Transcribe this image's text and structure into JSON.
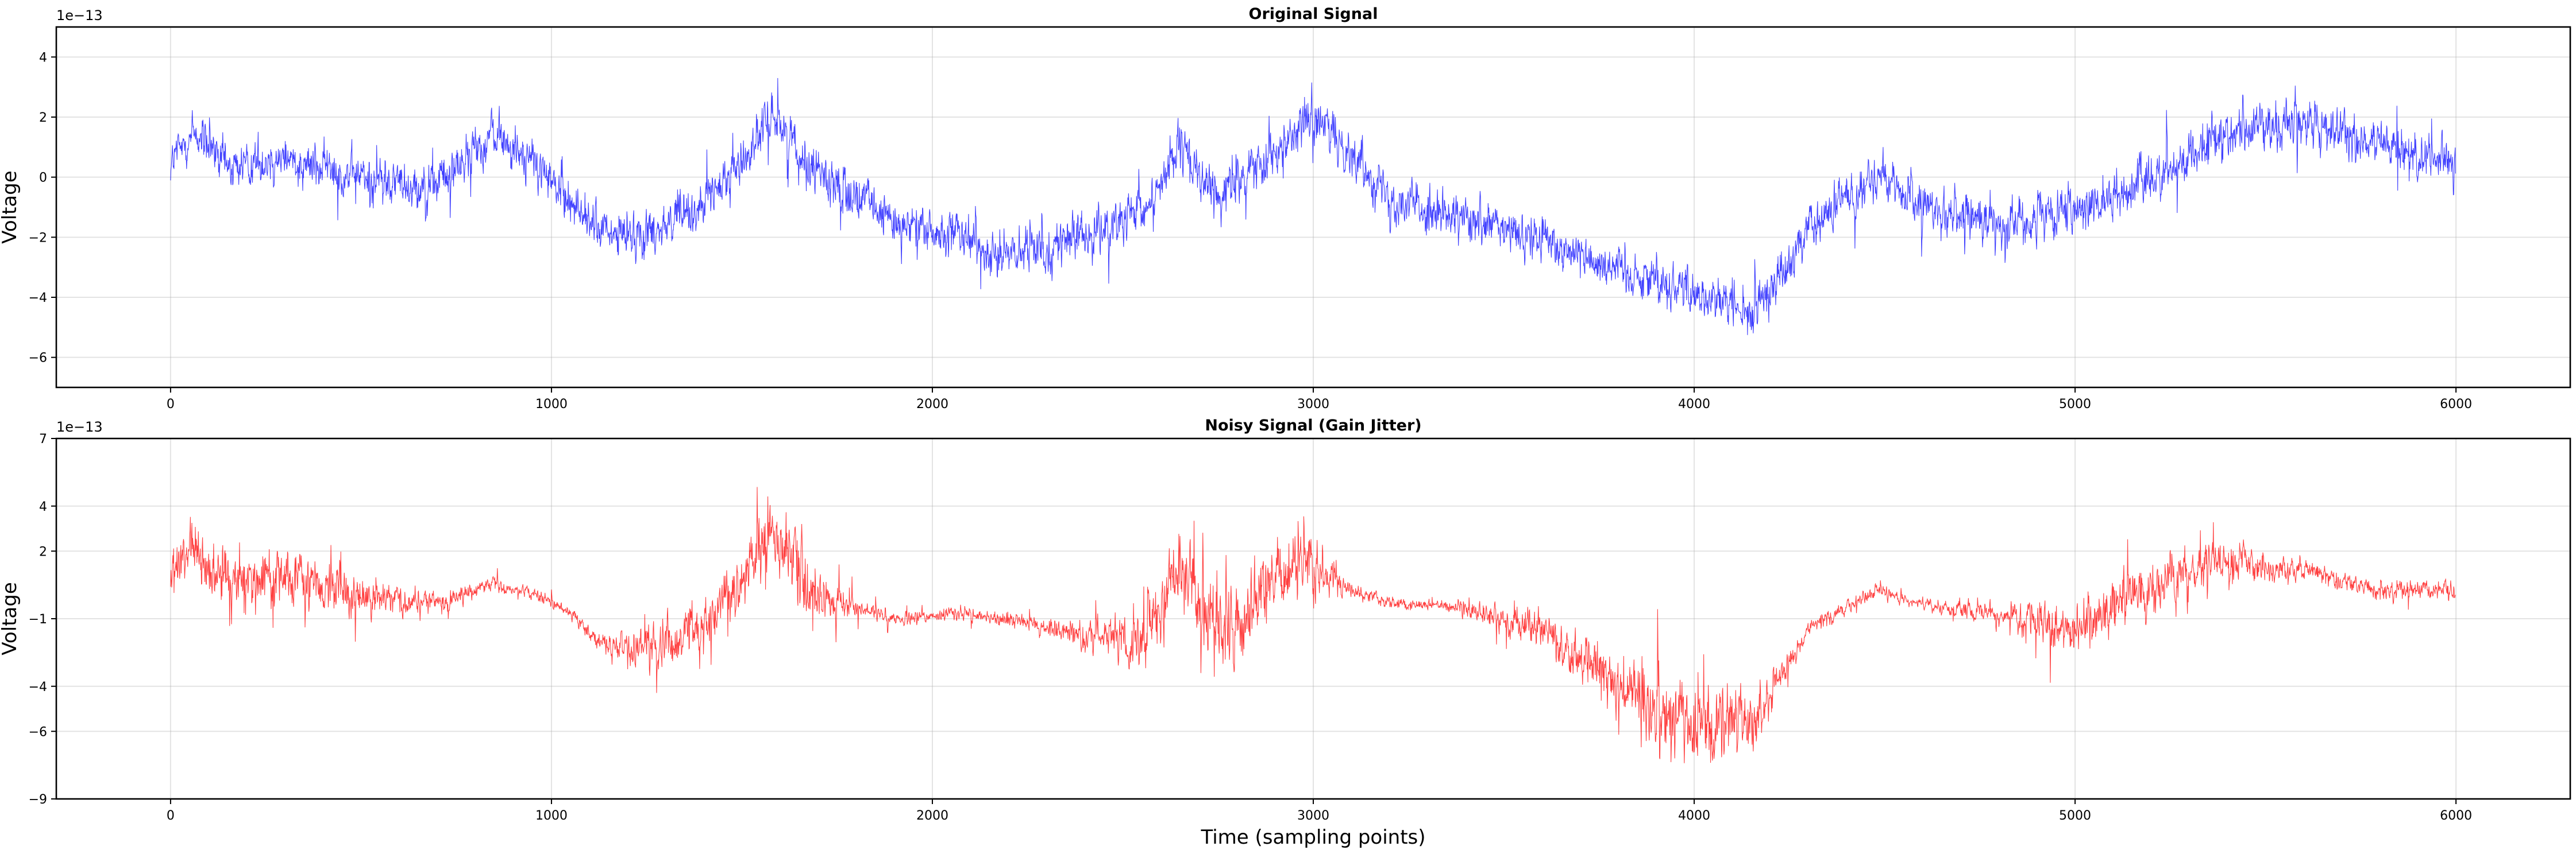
{
  "chart_data": [
    {
      "type": "line",
      "title": "Original Signal",
      "xlabel": "",
      "ylabel": "Voltage",
      "y_offset_label": "1e−13",
      "color": "#0000ff",
      "xlim": [
        -300,
        6300
      ],
      "ylim": [
        -7,
        5
      ],
      "xticks": [
        0,
        1000,
        2000,
        3000,
        4000,
        5000,
        6000
      ],
      "xtick_labels": [
        "0",
        "1000",
        "2000",
        "3000",
        "4000",
        "5000",
        "6000"
      ],
      "yticks": [
        -6,
        -4,
        -2,
        0,
        2,
        4
      ],
      "ytick_labels": [
        "−6",
        "−4",
        "−2",
        "0",
        "2",
        "4"
      ],
      "grid": true,
      "n_points": 6000,
      "noise_amplitude": 1.2,
      "trend": {
        "x": [
          0,
          60,
          150,
          300,
          500,
          700,
          850,
          950,
          1050,
          1150,
          1250,
          1400,
          1500,
          1580,
          1650,
          1750,
          1900,
          2050,
          2200,
          2400,
          2550,
          2650,
          2750,
          2900,
          3000,
          3100,
          3200,
          3400,
          3600,
          3800,
          4000,
          4150,
          4300,
          4480,
          4600,
          4800,
          5000,
          5200,
          5400,
          5600,
          5800,
          6000
        ],
        "y": [
          0.5,
          1.5,
          0.3,
          0.7,
          0.0,
          -0.3,
          1.5,
          0.5,
          -0.8,
          -2.0,
          -1.8,
          -1.0,
          0.5,
          2.2,
          0.8,
          -0.3,
          -1.5,
          -2.0,
          -2.6,
          -2.0,
          -1.3,
          1.0,
          -0.8,
          1.0,
          2.0,
          0.8,
          -0.6,
          -1.5,
          -2.0,
          -3.0,
          -3.8,
          -4.6,
          -1.8,
          0.2,
          -1.0,
          -1.5,
          -1.2,
          0.0,
          1.5,
          1.8,
          1.0,
          0.5
        ]
      }
    },
    {
      "type": "line",
      "title": "Noisy Signal (Gain Jitter)",
      "xlabel": "Time (sampling points)",
      "ylabel": "Voltage",
      "y_offset_label": "1e−13",
      "color": "#ff0000",
      "xlim": [
        -300,
        6300
      ],
      "ylim": [
        -9,
        7
      ],
      "xticks": [
        0,
        1000,
        2000,
        3000,
        4000,
        5000,
        6000
      ],
      "xtick_labels": [
        "0",
        "1000",
        "2000",
        "3000",
        "4000",
        "5000",
        "6000"
      ],
      "yticks": [
        -9,
        -6,
        -4,
        -1,
        2,
        4,
        7
      ],
      "ytick_labels": [
        "−9",
        "−6",
        "−4",
        "−1",
        "2",
        "4",
        "7"
      ],
      "grid": true,
      "n_points": 6000,
      "noise_amplitude": 1.2,
      "trend": {
        "x": [
          0,
          60,
          150,
          300,
          500,
          700,
          850,
          950,
          1050,
          1150,
          1250,
          1400,
          1500,
          1580,
          1650,
          1750,
          1900,
          2050,
          2200,
          2400,
          2550,
          2650,
          2750,
          2900,
          3000,
          3100,
          3200,
          3400,
          3600,
          3800,
          4000,
          4150,
          4300,
          4480,
          4600,
          4800,
          5000,
          5200,
          5400,
          5600,
          5800,
          6000
        ],
        "y": [
          0.8,
          2.0,
          0.5,
          1.0,
          0.0,
          -0.3,
          0.5,
          0.2,
          -0.8,
          -2.4,
          -2.2,
          -1.4,
          0.6,
          3.0,
          0.8,
          -0.3,
          -1.0,
          -0.8,
          -1.0,
          -1.8,
          -2.0,
          1.2,
          -2.5,
          1.0,
          1.5,
          0.2,
          -0.3,
          -0.5,
          -1.5,
          -4.0,
          -5.5,
          -5.8,
          -1.5,
          0.3,
          -0.4,
          -0.8,
          -1.5,
          0.5,
          1.5,
          1.2,
          0.2,
          0.3
        ]
      },
      "gain_envelope": {
        "x": [
          0,
          400,
          600,
          900,
          1100,
          1300,
          1500,
          1650,
          1800,
          2000,
          2300,
          2500,
          2700,
          2800,
          3000,
          3100,
          3300,
          3600,
          3900,
          4100,
          4300,
          4600,
          4800,
          5000,
          5200,
          5400,
          5600,
          5800,
          6000
        ],
        "y": [
          1.8,
          1.6,
          0.8,
          0.35,
          0.4,
          1.7,
          1.7,
          2.6,
          0.5,
          0.35,
          0.5,
          1.3,
          2.8,
          2.4,
          1.9,
          0.4,
          0.3,
          1.0,
          2.4,
          2.1,
          0.5,
          0.3,
          0.7,
          1.5,
          1.8,
          1.2,
          0.6,
          0.5,
          0.6
        ]
      }
    }
  ]
}
